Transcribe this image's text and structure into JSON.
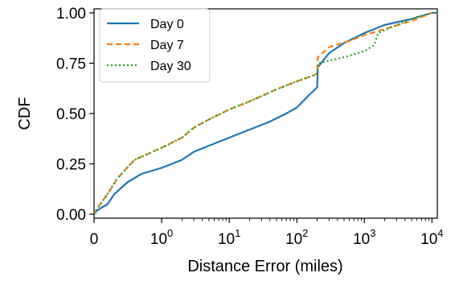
{
  "chart_data": {
    "type": "line",
    "xlabel": "Distance Error (miles)",
    "ylabel": "CDF",
    "x_scale": "symlog",
    "xlim": [
      0,
      12000
    ],
    "ylim": [
      -0.02,
      1.02
    ],
    "x_ticks": [
      {
        "value": 0,
        "base": "0",
        "exp": ""
      },
      {
        "value": 1,
        "base": "10",
        "exp": "0"
      },
      {
        "value": 10,
        "base": "10",
        "exp": "1"
      },
      {
        "value": 100,
        "base": "10",
        "exp": "2"
      },
      {
        "value": 1000,
        "base": "10",
        "exp": "3"
      },
      {
        "value": 10000,
        "base": "10",
        "exp": "4"
      }
    ],
    "y_ticks": [
      {
        "value": 0.0,
        "label": "0.00"
      },
      {
        "value": 0.25,
        "label": "0.25"
      },
      {
        "value": 0.5,
        "label": "0.50"
      },
      {
        "value": 0.75,
        "label": "0.75"
      },
      {
        "value": 1.0,
        "label": "1.00"
      }
    ],
    "grid": false,
    "legend_position": "top-left",
    "series": [
      {
        "name": "Day 0",
        "color": "#1f77b4",
        "style": "solid",
        "points": [
          [
            0,
            0
          ],
          [
            0.05,
            0.02
          ],
          [
            0.2,
            0.05
          ],
          [
            0.3,
            0.1
          ],
          [
            0.5,
            0.16
          ],
          [
            0.7,
            0.2
          ],
          [
            1,
            0.23
          ],
          [
            2,
            0.27
          ],
          [
            3,
            0.31
          ],
          [
            5,
            0.34
          ],
          [
            10,
            0.38
          ],
          [
            20,
            0.42
          ],
          [
            40,
            0.46
          ],
          [
            70,
            0.5
          ],
          [
            100,
            0.53
          ],
          [
            150,
            0.59
          ],
          [
            200,
            0.63
          ],
          [
            205,
            0.73
          ],
          [
            300,
            0.8
          ],
          [
            500,
            0.85
          ],
          [
            1000,
            0.9
          ],
          [
            2000,
            0.94
          ],
          [
            5000,
            0.97
          ],
          [
            10000,
            1.0
          ],
          [
            12000,
            1.0
          ]
        ]
      },
      {
        "name": "Day 7",
        "color": "#ff7f0e",
        "style": "dashed",
        "points": [
          [
            0,
            0
          ],
          [
            0.05,
            0.03
          ],
          [
            0.2,
            0.1
          ],
          [
            0.35,
            0.18
          ],
          [
            0.6,
            0.27
          ],
          [
            1,
            0.33
          ],
          [
            2,
            0.38
          ],
          [
            3,
            0.43
          ],
          [
            5,
            0.47
          ],
          [
            10,
            0.52
          ],
          [
            20,
            0.56
          ],
          [
            50,
            0.62
          ],
          [
            100,
            0.66
          ],
          [
            180,
            0.69
          ],
          [
            200,
            0.7
          ],
          [
            205,
            0.78
          ],
          [
            300,
            0.83
          ],
          [
            600,
            0.86
          ],
          [
            1000,
            0.89
          ],
          [
            2000,
            0.92
          ],
          [
            5000,
            0.96
          ],
          [
            10000,
            1.0
          ],
          [
            12000,
            1.0
          ]
        ]
      },
      {
        "name": "Day 30",
        "color": "#2ca02c",
        "style": "dotted",
        "points": [
          [
            0,
            0
          ],
          [
            0.05,
            0.03
          ],
          [
            0.2,
            0.1
          ],
          [
            0.35,
            0.18
          ],
          [
            0.6,
            0.27
          ],
          [
            1,
            0.33
          ],
          [
            2,
            0.38
          ],
          [
            3,
            0.43
          ],
          [
            5,
            0.47
          ],
          [
            10,
            0.52
          ],
          [
            20,
            0.56
          ],
          [
            50,
            0.62
          ],
          [
            100,
            0.66
          ],
          [
            180,
            0.69
          ],
          [
            200,
            0.7
          ],
          [
            210,
            0.75
          ],
          [
            500,
            0.78
          ],
          [
            1000,
            0.81
          ],
          [
            1400,
            0.84
          ],
          [
            1600,
            0.9
          ],
          [
            3000,
            0.94
          ],
          [
            6000,
            0.98
          ],
          [
            10000,
            1.0
          ],
          [
            12000,
            1.0
          ]
        ]
      }
    ]
  }
}
